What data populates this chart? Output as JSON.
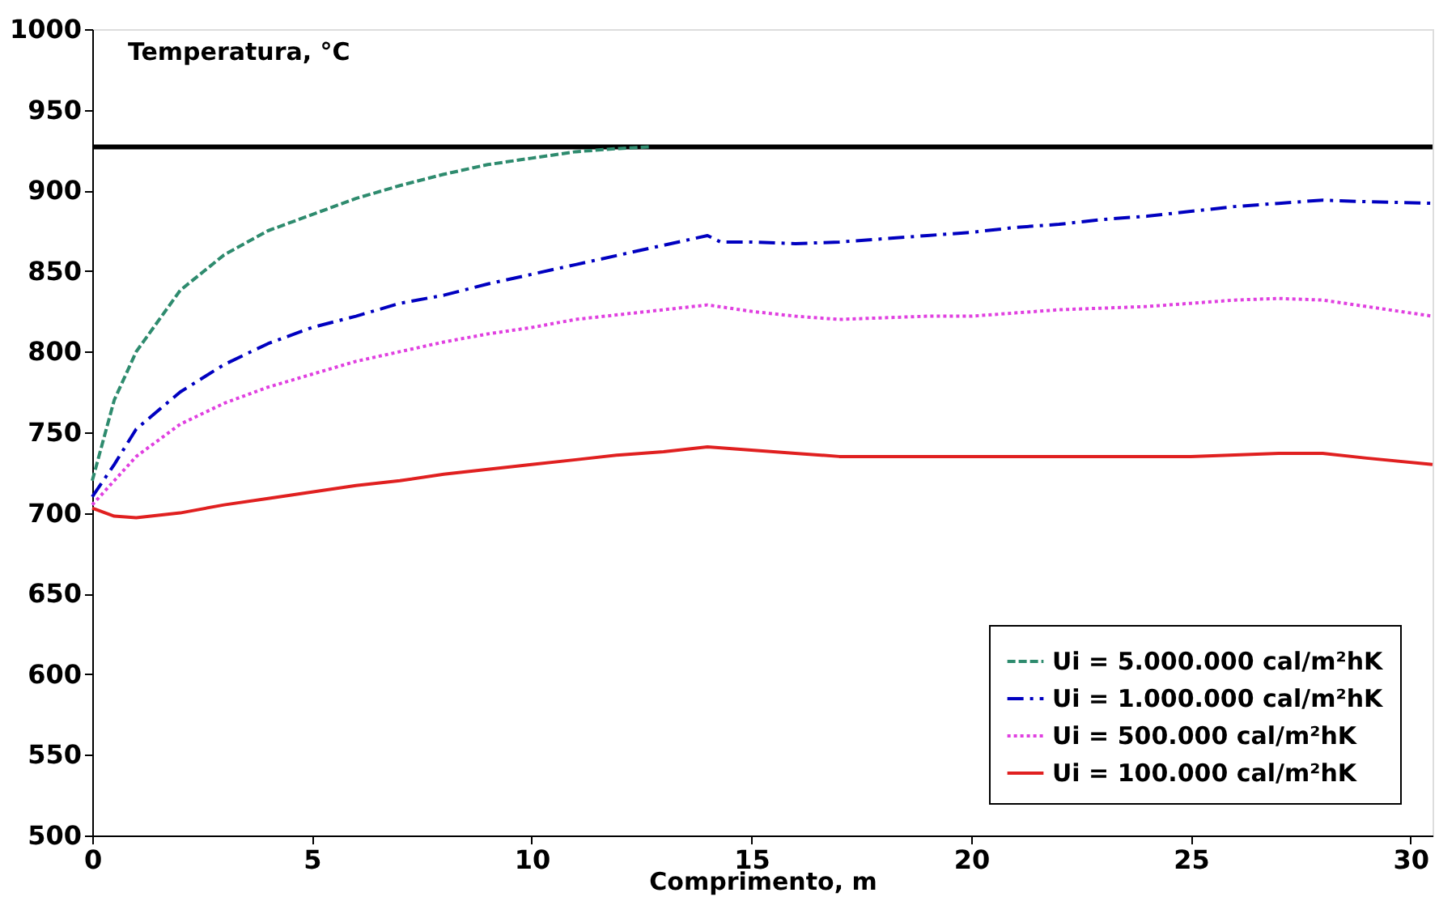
{
  "chart_data": {
    "type": "line",
    "ylabel": "Temperatura, °C",
    "xlabel": "Comprimento, m",
    "xlim": [
      0,
      30.5
    ],
    "xticks": [
      0,
      5,
      10,
      15,
      20,
      25,
      30
    ],
    "ylim": [
      500,
      1000
    ],
    "yticks": [
      500,
      550,
      600,
      650,
      700,
      750,
      800,
      850,
      900,
      950,
      1000
    ],
    "grid": false,
    "legend": "bottom right",
    "ref_lines": [
      {
        "axis": "y",
        "value": 927,
        "color": "#000000",
        "line_style": "solid"
      }
    ],
    "series": [
      {
        "name": "Ui = 5.000.000 cal/m²hK",
        "color": "#2e8b6e",
        "line_style": "dashed",
        "x": [
          0,
          0.2,
          0.5,
          1,
          2,
          3,
          4,
          5,
          6,
          7,
          8,
          9,
          10,
          11,
          12,
          12.7
        ],
        "values": [
          720,
          740,
          770,
          800,
          838,
          860,
          875,
          885,
          895,
          903,
          910,
          916,
          920,
          924,
          926,
          927
        ]
      },
      {
        "name": "Ui = 1.000.000 cal/m²hK",
        "color": "#0000c0",
        "line_style": "dashdot",
        "x": [
          0,
          0.5,
          1,
          2,
          3,
          4,
          5,
          6,
          7,
          8,
          9,
          10,
          11,
          12,
          13,
          14,
          14.3,
          15,
          16,
          17,
          18,
          19,
          20,
          21,
          22,
          23,
          24,
          25,
          26,
          27,
          28,
          29,
          30.5
        ],
        "values": [
          710,
          730,
          752,
          775,
          792,
          805,
          815,
          822,
          830,
          835,
          842,
          848,
          854,
          860,
          866,
          872,
          868,
          868,
          867,
          868,
          870,
          872,
          874,
          877,
          879,
          882,
          884,
          887,
          890,
          892,
          894,
          893,
          892
        ]
      },
      {
        "name": "Ui = 500.000 cal/m²hK",
        "color": "#e040e0",
        "line_style": "dotted",
        "x": [
          0,
          0.5,
          1,
          2,
          3,
          4,
          5,
          6,
          7,
          8,
          9,
          10,
          11,
          12,
          13,
          14,
          15,
          16,
          17,
          18,
          19,
          20,
          21,
          22,
          23,
          24,
          25,
          26,
          27,
          28,
          29,
          30.5
        ],
        "values": [
          705,
          720,
          735,
          755,
          768,
          778,
          786,
          794,
          800,
          806,
          811,
          815,
          820,
          823,
          826,
          829,
          825,
          822,
          820,
          821,
          822,
          822,
          824,
          826,
          827,
          828,
          830,
          832,
          833,
          832,
          828,
          822
        ]
      },
      {
        "name": "Ui = 100.000 cal/m²hK",
        "color": "#e02020",
        "line_style": "solid",
        "x": [
          0,
          0.5,
          1,
          2,
          3,
          4,
          5,
          6,
          7,
          8,
          9,
          10,
          11,
          12,
          13,
          14,
          15,
          16,
          17,
          18,
          19,
          20,
          21,
          22,
          23,
          24,
          25,
          26,
          27,
          28,
          29,
          30.5
        ],
        "values": [
          703,
          698,
          697,
          700,
          705,
          709,
          713,
          717,
          720,
          724,
          727,
          730,
          733,
          736,
          738,
          741,
          739,
          737,
          735,
          735,
          735,
          735,
          735,
          735,
          735,
          735,
          735,
          736,
          737,
          737,
          734,
          730
        ]
      }
    ]
  }
}
